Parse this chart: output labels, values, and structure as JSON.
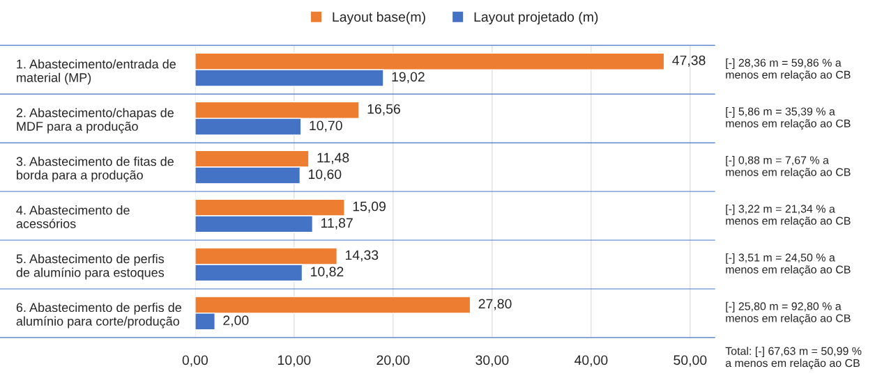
{
  "chart_data": {
    "type": "bar",
    "orientation": "horizontal",
    "categories": [
      "1. Abastecimento/entrada de\nmaterial (MP)",
      "2. Abastecimento/chapas de\nMDF para a produção",
      "3. Abastecimento de fitas de\nborda para a produção",
      "4. Abastecimento de\nacessórios",
      "5. Abastecimento de perfis\nde alumínio para estoques",
      "6. Abastecimento de perfis de\nalumínio para corte/produção"
    ],
    "series": [
      {
        "name": "Layout base(m)",
        "color": "#ed7d31",
        "values": [
          47.38,
          16.56,
          11.48,
          15.09,
          14.33,
          27.8
        ],
        "value_labels": [
          "47,38",
          "16,56",
          "11,48",
          "15,09",
          "14,33",
          "27,80"
        ]
      },
      {
        "name": "Layout projetado (m)",
        "color": "#4472c4",
        "values": [
          19.02,
          10.7,
          10.6,
          11.87,
          10.82,
          2.0
        ],
        "value_labels": [
          "19,02",
          "10,70",
          "10,60",
          "11,87",
          "10,82",
          "2,00"
        ]
      }
    ],
    "xlim": [
      0,
      52.5
    ],
    "xticks": [
      {
        "value": 0,
        "label": "0,00"
      },
      {
        "value": 10,
        "label": "10,00"
      },
      {
        "value": 20,
        "label": "20,00"
      },
      {
        "value": 30,
        "label": "30,00"
      },
      {
        "value": 40,
        "label": "40,00"
      },
      {
        "value": 50,
        "label": "50,00"
      }
    ],
    "grid": "x",
    "legend": "top",
    "annotations": [
      "[-] 28,36 m = 59,86 % a\nmenos em relação ao CB",
      "[-] 5,86 m = 35,39 % a\nmenos em relação ao CB",
      "[-] 0,88 m = 7,67 % a\nmenos em relação ao CB",
      "[-] 3,22 m = 21,34 % a\nmenos em relação ao CB",
      "[-] 3,51 m = 24,50 % a\nmenos em relação ao CB",
      "[-] 25,80 m = 92,80 % a\nmenos em relação ao CB",
      "Total: [-] 67,63 m = 50,99 %\na menos em relação ao CB"
    ]
  }
}
